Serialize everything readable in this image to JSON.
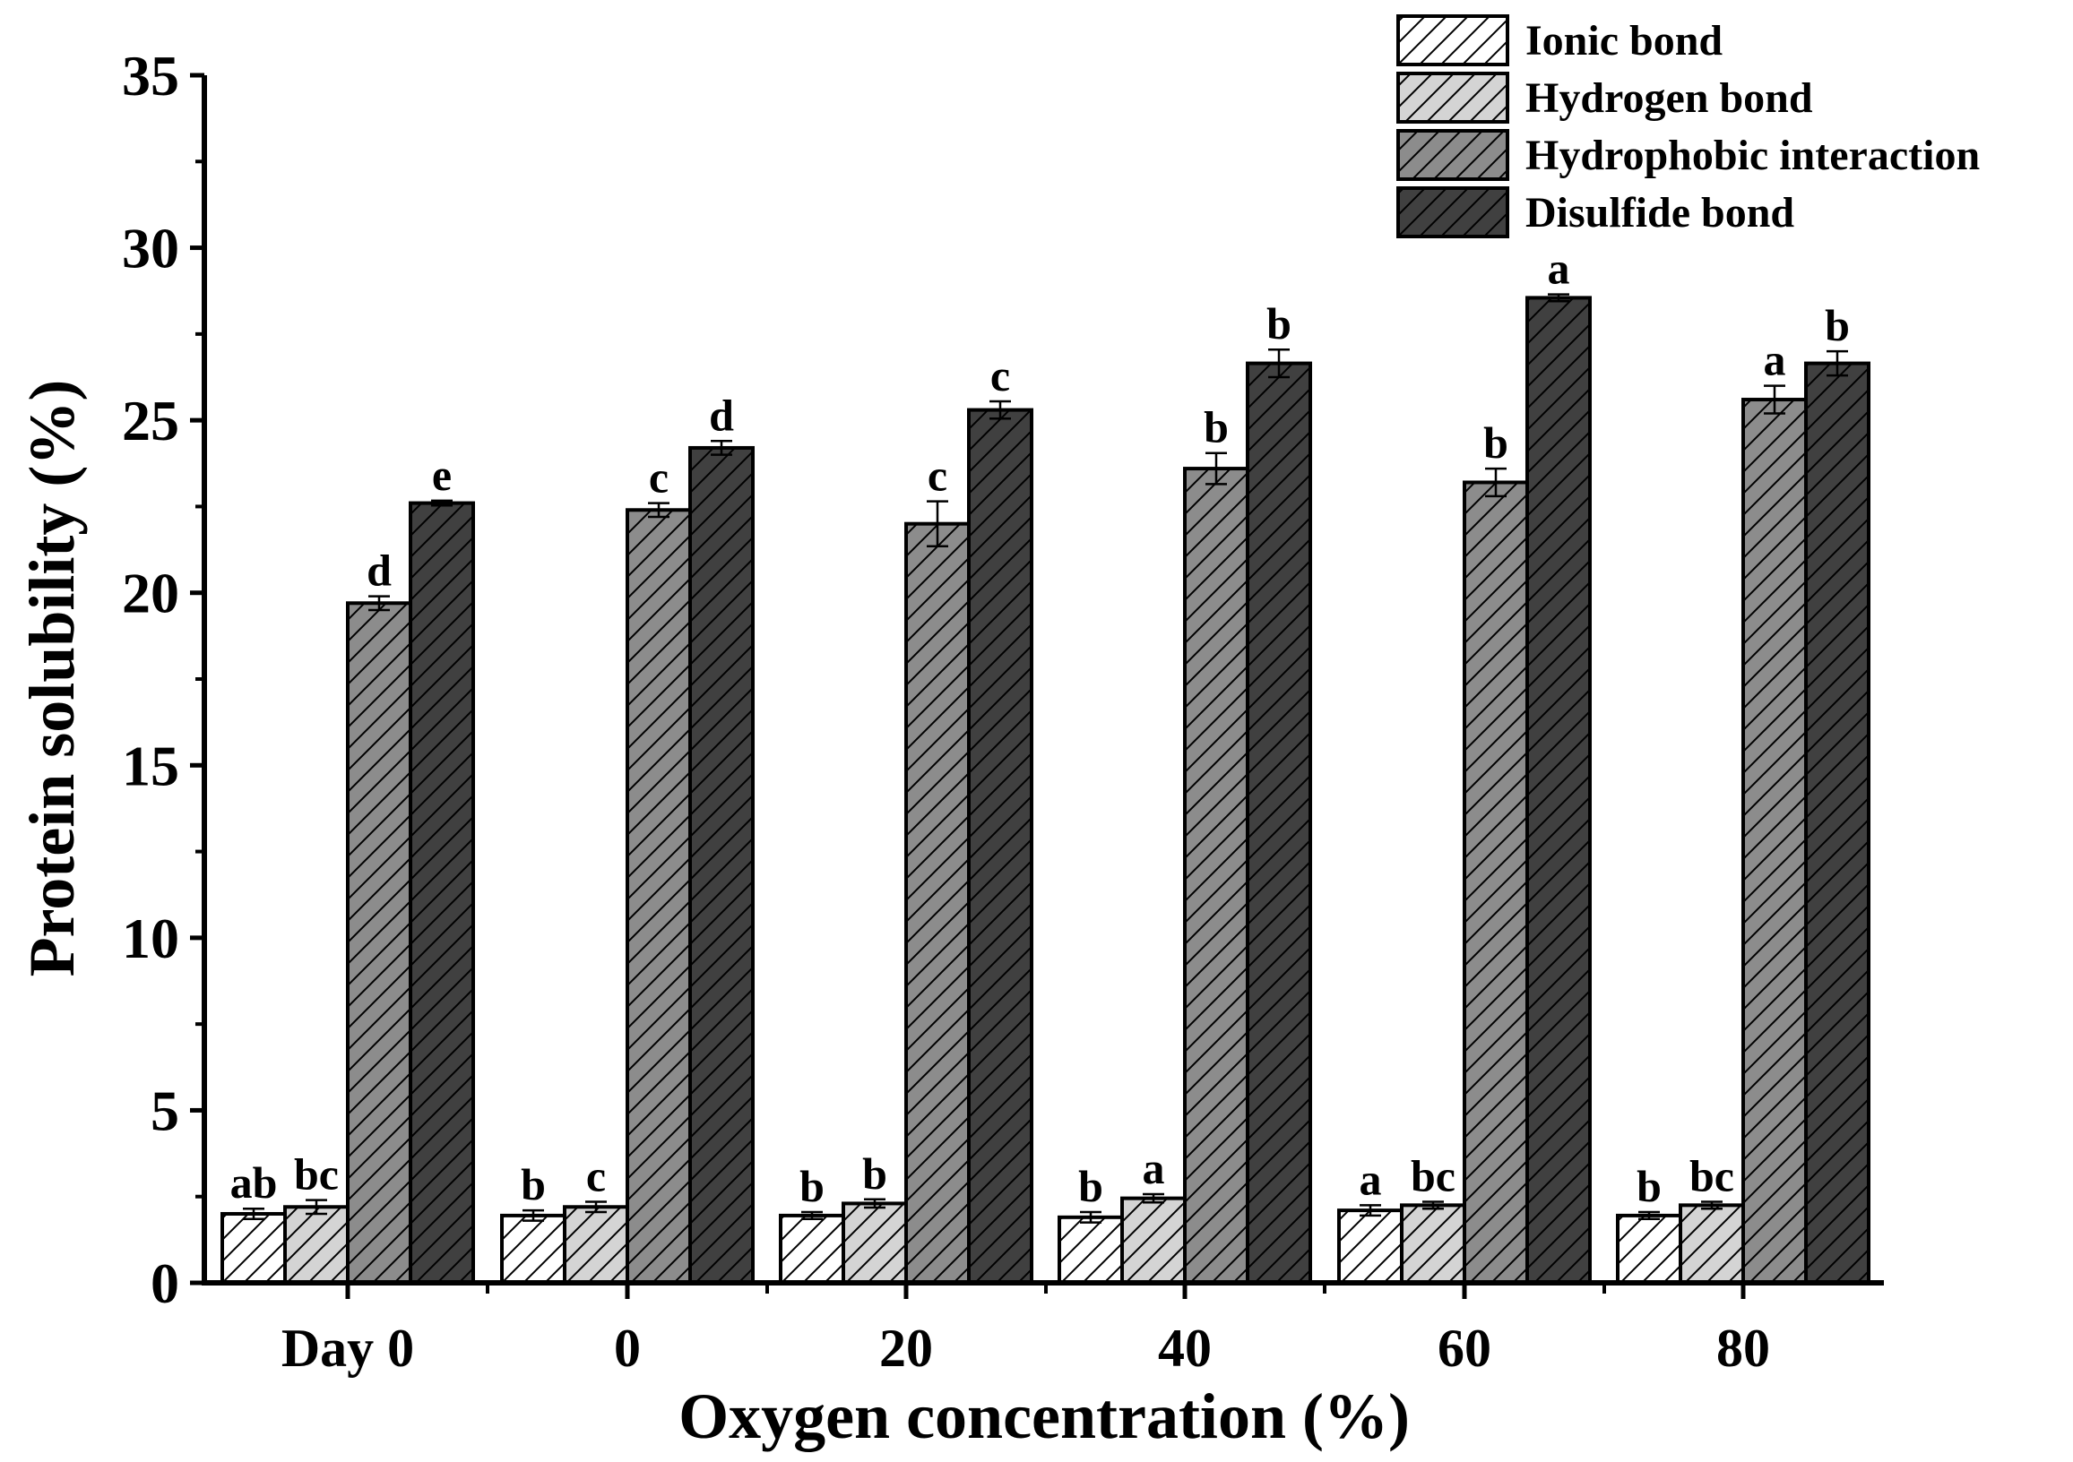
{
  "chart_data": {
    "type": "bar",
    "xlabel": "Oxygen concentration (%)",
    "ylabel": "Protein solubility (%)",
    "ylim": [
      0,
      35
    ],
    "yticks": [
      0,
      5,
      10,
      15,
      20,
      25,
      30,
      35
    ],
    "ytick_labels": [
      "0",
      "5",
      "10",
      "15",
      "20",
      "25",
      "30",
      "35"
    ],
    "categories": [
      "Day 0",
      "0",
      "20",
      "40",
      "60",
      "80"
    ],
    "legend_position": "top-right",
    "series": [
      {
        "name": "Ionic bond",
        "color": "#ffffff",
        "values": [
          2.0,
          1.95,
          1.95,
          1.9,
          2.1,
          1.95
        ],
        "errors": [
          0.15,
          0.15,
          0.1,
          0.15,
          0.15,
          0.1
        ],
        "labels": [
          "ab",
          "b",
          "b",
          "b",
          "a",
          "b"
        ]
      },
      {
        "name": "Hydrogen bond",
        "color": "#d4d4d4",
        "values": [
          2.2,
          2.2,
          2.3,
          2.45,
          2.25,
          2.25
        ],
        "errors": [
          0.2,
          0.15,
          0.12,
          0.12,
          0.1,
          0.1
        ],
        "labels": [
          "bc",
          "c",
          "b",
          "a",
          "bc",
          "bc"
        ]
      },
      {
        "name": "Hydrophobic interaction",
        "color": "#8c8c8c",
        "values": [
          19.7,
          22.4,
          22.0,
          23.6,
          23.2,
          25.6
        ],
        "errors": [
          0.2,
          0.2,
          0.65,
          0.45,
          0.4,
          0.4
        ],
        "labels": [
          "d",
          "c",
          "c",
          "b",
          "b",
          "a"
        ]
      },
      {
        "name": "Disulfide bond",
        "color": "#404040",
        "values": [
          22.6,
          24.2,
          25.3,
          26.65,
          28.55,
          26.65
        ],
        "errors": [
          0.07,
          0.2,
          0.25,
          0.4,
          0.1,
          0.35
        ],
        "labels": [
          "e",
          "d",
          "c",
          "b",
          "a",
          "b"
        ]
      }
    ]
  }
}
